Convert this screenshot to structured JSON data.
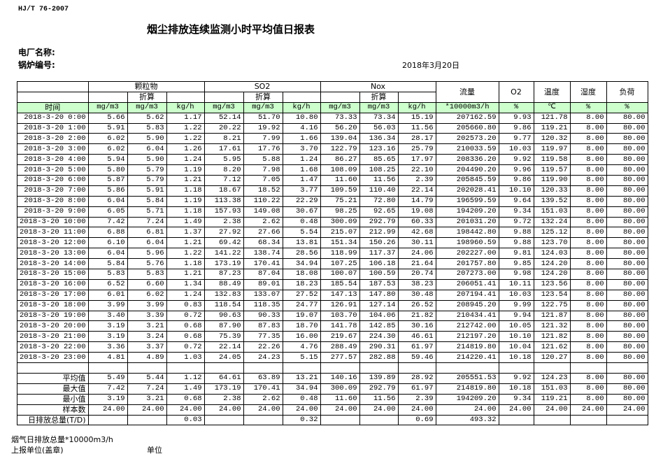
{
  "standard": "HJ/T  76-2007",
  "title": "烟尘排放连续监测小时平均值日报表",
  "plant_label": "电厂名称:",
  "boiler_label": "锅炉编号:",
  "date": "2018年3月20日",
  "groups": {
    "pm": "颗粒物",
    "so2": "SO2",
    "nox": "Nox",
    "converted": "折算",
    "flow": "流量",
    "o2": "O2",
    "temp": "温度",
    "humidity": "湿度",
    "load": "负荷"
  },
  "units": [
    "时间",
    "mg/m3",
    "mg/m3",
    "kg/h",
    "mg/m3",
    "mg/m3",
    "kg/h",
    "mg/m3",
    "mg/m3",
    "kg/h",
    "*10000m3/h",
    "%",
    "℃",
    "%",
    "%"
  ],
  "rows": [
    [
      "2018-3-20 0:00",
      "5.66",
      "5.62",
      "1.17",
      "52.14",
      "51.70",
      "10.80",
      "73.33",
      "73.34",
      "15.19",
      "207162.59",
      "9.93",
      "121.78",
      "8.00",
      "80.00"
    ],
    [
      "2018-3-20 1:00",
      "5.91",
      "5.83",
      "1.22",
      "20.22",
      "19.92",
      "4.16",
      "56.20",
      "56.03",
      "11.56",
      "205660.80",
      "9.86",
      "119.21",
      "8.00",
      "80.00"
    ],
    [
      "2018-3-20 2:00",
      "6.02",
      "5.90",
      "1.22",
      "8.21",
      "7.99",
      "1.66",
      "139.04",
      "136.34",
      "28.17",
      "202573.20",
      "9.77",
      "120.32",
      "8.00",
      "80.00"
    ],
    [
      "2018-3-20 3:00",
      "6.02",
      "6.04",
      "1.26",
      "17.61",
      "17.76",
      "3.70",
      "122.79",
      "123.16",
      "25.79",
      "210033.59",
      "10.03",
      "119.97",
      "8.00",
      "80.00"
    ],
    [
      "2018-3-20 4:00",
      "5.94",
      "5.90",
      "1.24",
      "5.95",
      "5.88",
      "1.24",
      "86.27",
      "85.65",
      "17.97",
      "208336.20",
      "9.92",
      "119.58",
      "8.00",
      "80.00"
    ],
    [
      "2018-3-20 5:00",
      "5.80",
      "5.79",
      "1.19",
      "8.20",
      "7.98",
      "1.68",
      "108.09",
      "108.25",
      "22.10",
      "204490.20",
      "9.96",
      "119.57",
      "8.00",
      "80.00"
    ],
    [
      "2018-3-20 6:00",
      "5.87",
      "5.79",
      "1.21",
      "7.12",
      "7.05",
      "1.47",
      "11.60",
      "11.56",
      "2.39",
      "205845.59",
      "9.86",
      "119.90",
      "8.00",
      "80.00"
    ],
    [
      "2018-3-20 7:00",
      "5.86",
      "5.91",
      "1.18",
      "18.67",
      "18.52",
      "3.77",
      "109.59",
      "110.40",
      "22.14",
      "202028.41",
      "10.10",
      "120.33",
      "8.00",
      "80.00"
    ],
    [
      "2018-3-20 8:00",
      "6.04",
      "5.84",
      "1.19",
      "113.38",
      "110.22",
      "22.29",
      "75.21",
      "72.80",
      "14.79",
      "196599.59",
      "9.64",
      "139.52",
      "8.00",
      "80.00"
    ],
    [
      "2018-3-20 9:00",
      "6.05",
      "5.71",
      "1.18",
      "157.93",
      "149.08",
      "30.67",
      "98.25",
      "92.65",
      "19.08",
      "194209.20",
      "9.34",
      "151.03",
      "8.00",
      "80.00"
    ],
    [
      "2018-3-20 10:00",
      "7.42",
      "7.24",
      "1.49",
      "2.38",
      "2.62",
      "0.48",
      "300.09",
      "292.79",
      "60.33",
      "201031.20",
      "9.72",
      "132.24",
      "8.00",
      "80.00"
    ],
    [
      "2018-3-20 11:00",
      "6.88",
      "6.81",
      "1.37",
      "27.92",
      "27.66",
      "5.54",
      "215.07",
      "212.99",
      "42.68",
      "198442.80",
      "9.88",
      "125.12",
      "8.00",
      "80.00"
    ],
    [
      "2018-3-20 12:00",
      "6.10",
      "6.04",
      "1.21",
      "69.42",
      "68.34",
      "13.81",
      "151.34",
      "150.26",
      "30.11",
      "198960.59",
      "9.88",
      "123.70",
      "8.00",
      "80.00"
    ],
    [
      "2018-3-20 13:00",
      "6.04",
      "5.96",
      "1.22",
      "141.22",
      "138.74",
      "28.56",
      "118.99",
      "117.37",
      "24.06",
      "202227.00",
      "9.81",
      "124.03",
      "8.00",
      "80.00"
    ],
    [
      "2018-3-20 14:00",
      "5.84",
      "5.76",
      "1.18",
      "173.19",
      "170.41",
      "34.94",
      "107.25",
      "106.18",
      "21.64",
      "201757.80",
      "9.85",
      "124.20",
      "8.00",
      "80.00"
    ],
    [
      "2018-3-20 15:00",
      "5.83",
      "5.83",
      "1.21",
      "87.23",
      "87.04",
      "18.08",
      "100.07",
      "100.59",
      "20.74",
      "207273.00",
      "9.98",
      "124.20",
      "8.00",
      "80.00"
    ],
    [
      "2018-3-20 16:00",
      "6.52",
      "6.60",
      "1.34",
      "88.49",
      "89.01",
      "18.23",
      "185.54",
      "187.53",
      "38.23",
      "206051.41",
      "10.11",
      "123.56",
      "8.00",
      "80.00"
    ],
    [
      "2018-3-20 17:00",
      "6.01",
      "6.02",
      "1.24",
      "132.83",
      "133.07",
      "27.52",
      "147.13",
      "147.80",
      "30.48",
      "207194.41",
      "10.03",
      "123.54",
      "8.00",
      "80.00"
    ],
    [
      "2018-3-20 18:00",
      "3.99",
      "3.99",
      "0.83",
      "118.54",
      "118.35",
      "24.77",
      "126.91",
      "127.14",
      "26.52",
      "208945.20",
      "9.99",
      "122.75",
      "8.00",
      "80.00"
    ],
    [
      "2018-3-20 19:00",
      "3.40",
      "3.39",
      "0.72",
      "90.63",
      "90.33",
      "19.07",
      "103.70",
      "104.06",
      "21.82",
      "210434.41",
      "9.94",
      "121.87",
      "8.00",
      "80.00"
    ],
    [
      "2018-3-20 20:00",
      "3.19",
      "3.21",
      "0.68",
      "87.90",
      "87.83",
      "18.70",
      "141.78",
      "142.85",
      "30.16",
      "212742.00",
      "10.05",
      "121.32",
      "8.00",
      "80.00"
    ],
    [
      "2018-3-20 21:00",
      "3.19",
      "3.24",
      "0.68",
      "75.39",
      "77.35",
      "16.00",
      "219.67",
      "224.30",
      "46.61",
      "212197.20",
      "10.10",
      "121.82",
      "8.00",
      "80.00"
    ],
    [
      "2018-3-20 22:00",
      "3.36",
      "3.37",
      "0.72",
      "22.14",
      "22.26",
      "4.76",
      "288.49",
      "290.31",
      "61.97",
      "214819.80",
      "10.04",
      "121.62",
      "8.00",
      "80.00"
    ],
    [
      "2018-3-20 23:00",
      "4.81",
      "4.89",
      "1.03",
      "24.05",
      "24.23",
      "5.15",
      "277.57",
      "282.88",
      "59.46",
      "214220.41",
      "10.18",
      "120.27",
      "8.00",
      "80.00"
    ]
  ],
  "summary": [
    [
      "平均值",
      "5.49",
      "5.44",
      "1.12",
      "64.61",
      "63.89",
      "13.21",
      "140.16",
      "139.89",
      "28.92",
      "205551.53",
      "9.92",
      "124.23",
      "8.00",
      "80.00"
    ],
    [
      "最大值",
      "7.42",
      "7.24",
      "1.49",
      "173.19",
      "170.41",
      "34.94",
      "300.09",
      "292.79",
      "61.97",
      "214819.80",
      "10.18",
      "151.03",
      "8.00",
      "80.00"
    ],
    [
      "最小值",
      "3.19",
      "3.21",
      "0.68",
      "2.38",
      "2.62",
      "0.48",
      "11.60",
      "11.56",
      "2.39",
      "194209.20",
      "9.34",
      "119.21",
      "8.00",
      "80.00"
    ],
    [
      "样本数",
      "24.00",
      "24.00",
      "24.00",
      "24.00",
      "24.00",
      "24.00",
      "24.00",
      "24.00",
      "24.00",
      "24.00",
      "24.00",
      "24.00",
      "24.00",
      "24.00"
    ],
    [
      "日排放总量(T/D)",
      "",
      "",
      "0.03",
      "",
      "",
      "0.32",
      "",
      "",
      "0.69",
      "493.32",
      "",
      "",
      "",
      ""
    ]
  ],
  "footer": {
    "flue_total": "烟气日排放总量*10000m3/h",
    "reporter": "上报单位(盖章)",
    "unit": "单位"
  }
}
